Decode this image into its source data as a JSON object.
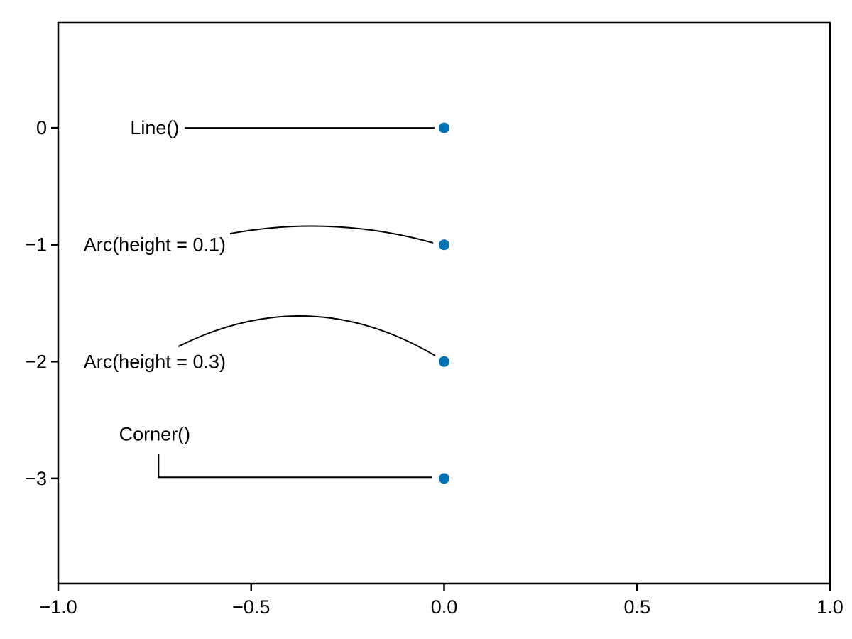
{
  "chart_data": {
    "type": "scatter",
    "title": "",
    "points": [
      {
        "x": 0,
        "y": 0
      },
      {
        "x": 0,
        "y": -1
      },
      {
        "x": 0,
        "y": -2
      },
      {
        "x": 0,
        "y": -3
      }
    ],
    "marker": {
      "color": "#0072B2",
      "radius_px": 7.5
    },
    "line_color": "#000000",
    "text_color": "#000000",
    "background_color": "#ffffff",
    "font_size_px": 27,
    "axes": {
      "xlim": [
        -1.0,
        1.0
      ],
      "ylim": [
        -3.9,
        0.9
      ],
      "xtick_values": [
        -1.0,
        -0.5,
        0.0,
        0.5,
        1.0
      ],
      "xtick_labels": [
        "−1.0",
        "−0.5",
        "0.0",
        "0.5",
        "1.0"
      ],
      "ytick_values": [
        0,
        -1,
        -2,
        -3
      ],
      "ytick_labels": [
        "0",
        "−1",
        "−2",
        "−3"
      ],
      "grid": false,
      "frame": "box",
      "legend": "none"
    },
    "annotations": [
      {
        "label": "Line()",
        "label_pos": [
          -0.75,
          0
        ],
        "target": [
          0,
          0
        ],
        "path": {
          "type": "line",
          "start": [
            -0.672,
            0
          ],
          "end": [
            -0.025,
            0
          ]
        }
      },
      {
        "label": "Arc(height = 0.1)",
        "label_pos": [
          -0.75,
          -1
        ],
        "target": [
          0,
          -1
        ],
        "path": {
          "type": "arc",
          "height": 0.1,
          "start": [
            -0.555,
            -0.905
          ],
          "end": [
            -0.0285,
            -0.984
          ]
        }
      },
      {
        "label": "Arc(height = 0.3)",
        "label_pos": [
          -0.75,
          -2
        ],
        "target": [
          0,
          -2
        ],
        "path": {
          "type": "arc",
          "height": 0.3,
          "start": [
            -0.689,
            -1.871
          ],
          "end": [
            -0.023,
            -1.95
          ]
        }
      },
      {
        "label": "Corner()",
        "label_pos": [
          -0.75,
          -2.62
        ],
        "target": [
          0,
          -3
        ],
        "path": {
          "type": "corner",
          "points": [
            [
              -0.74,
              -2.794
            ],
            [
              -0.74,
              -2.99
            ],
            [
              -0.032,
              -2.99
            ]
          ]
        }
      }
    ]
  }
}
